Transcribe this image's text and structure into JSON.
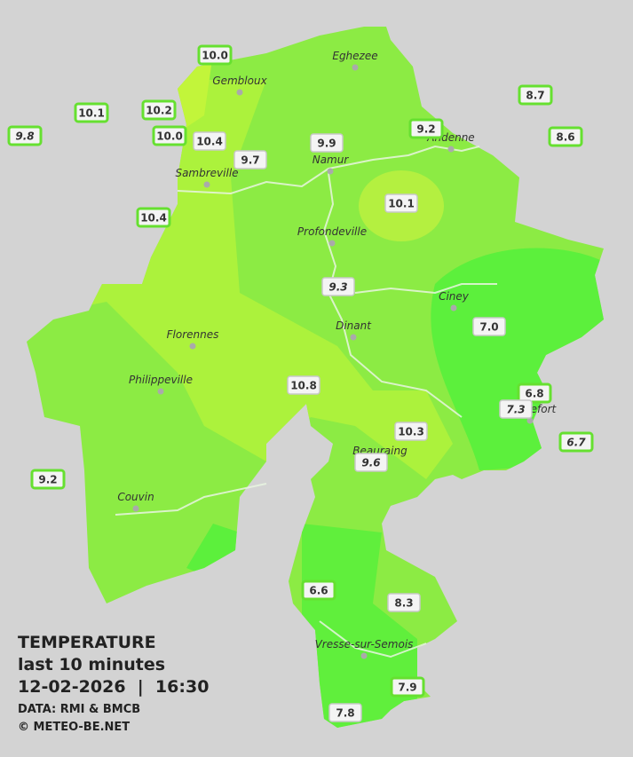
{
  "header": {
    "title": "TEMPERATURE",
    "subtitle": "last 10 minutes",
    "datetime": "12-02-2026  |  16:30",
    "source": "DATA: RMI & BMCB",
    "copyright": "© METEO-BE.NET"
  },
  "places": [
    "Eghezee",
    "Gembloux",
    "Andenne",
    "Namur",
    "Sambreville",
    "Profondeville",
    "Ciney",
    "Dinant",
    "Florennes",
    "Philippeville",
    "Beauraing",
    "Rochefort",
    "Couvin",
    "Vresse-sur-Semois"
  ],
  "stations": [
    {
      "label": "10.0",
      "italic": false,
      "outside": true
    },
    {
      "label": "10.1",
      "italic": false,
      "outside": true
    },
    {
      "label": "10.2",
      "italic": false,
      "outside": true
    },
    {
      "label": "9.8",
      "italic": true,
      "outside": true
    },
    {
      "label": "10.0",
      "italic": false,
      "outside": true
    },
    {
      "label": "10.4",
      "italic": false,
      "outside": false
    },
    {
      "label": "9.7",
      "italic": false,
      "outside": false
    },
    {
      "label": "9.9",
      "italic": false,
      "outside": false
    },
    {
      "label": "9.2",
      "italic": false,
      "outside": true
    },
    {
      "label": "8.7",
      "italic": false,
      "outside": true
    },
    {
      "label": "8.6",
      "italic": false,
      "outside": true
    },
    {
      "label": "10.4",
      "italic": false,
      "outside": true
    },
    {
      "label": "10.1",
      "italic": false,
      "outside": false
    },
    {
      "label": "9.3",
      "italic": true,
      "outside": false
    },
    {
      "label": "7.0",
      "italic": false,
      "outside": false
    },
    {
      "label": "10.8",
      "italic": false,
      "outside": false
    },
    {
      "label": "6.8",
      "italic": false,
      "outside": true
    },
    {
      "label": "7.3",
      "italic": true,
      "outside": false
    },
    {
      "label": "6.7",
      "italic": true,
      "outside": true
    },
    {
      "label": "10.3",
      "italic": false,
      "outside": false
    },
    {
      "label": "9.6",
      "italic": true,
      "outside": false
    },
    {
      "label": "9.2",
      "italic": false,
      "outside": true
    },
    {
      "label": "6.6",
      "italic": false,
      "outside": true
    },
    {
      "label": "8.3",
      "italic": false,
      "outside": false
    },
    {
      "label": "7.9",
      "italic": false,
      "outside": true
    },
    {
      "label": "7.8",
      "italic": false,
      "outside": false
    }
  ]
}
